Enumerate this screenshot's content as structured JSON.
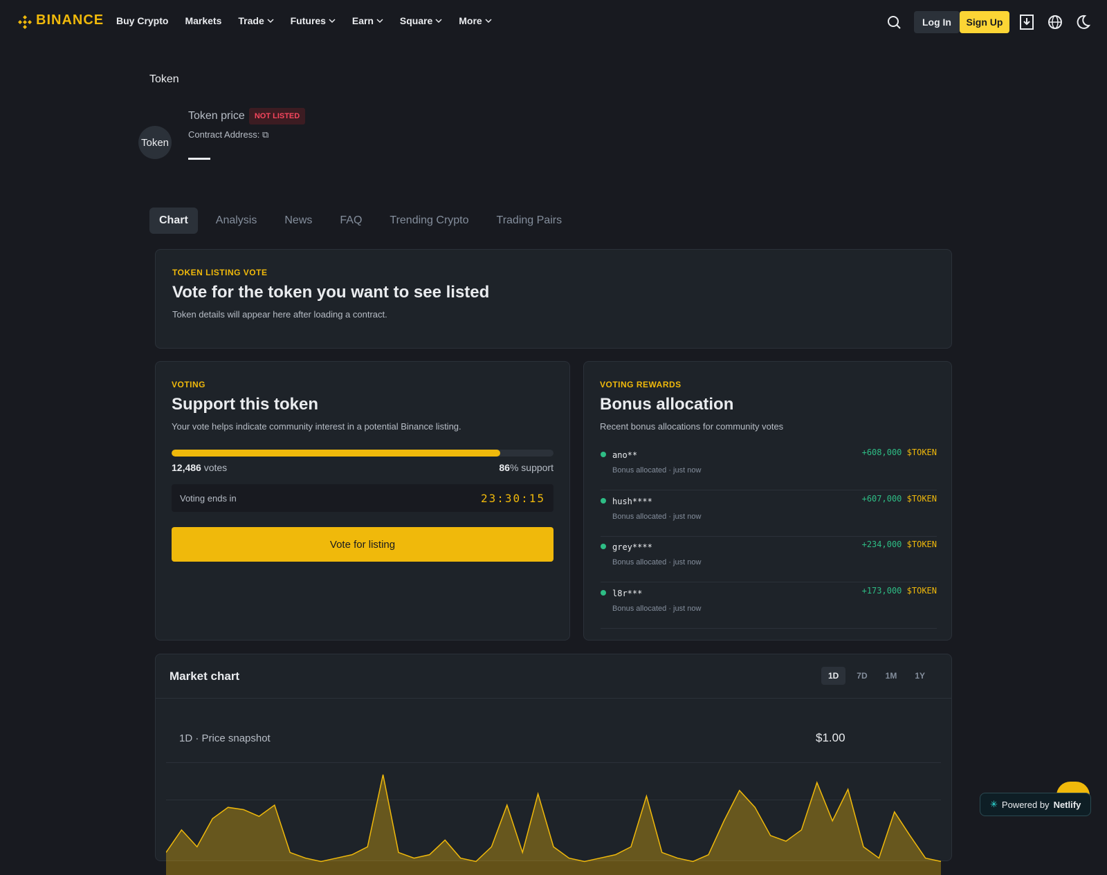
{
  "header": {
    "logo": "BINANCE",
    "nav": [
      "Buy Crypto",
      "Markets",
      "Trade",
      "Futures",
      "Earn",
      "Square",
      "More"
    ],
    "login": "Log In",
    "signup": "Sign Up"
  },
  "breadcrumb": "Token",
  "token": {
    "logo_alt": "Token",
    "title": "Token price",
    "badge": "NOT LISTED",
    "contract": "Contract Address:"
  },
  "tabs": [
    "Chart",
    "Analysis",
    "News",
    "FAQ",
    "Trending Crypto",
    "Trading Pairs"
  ],
  "banner": {
    "eyebrow": "TOKEN LISTING VOTE",
    "title": "Vote for the token you want to see listed",
    "text": "Token details will appear here after loading a contract."
  },
  "voting": {
    "eyebrow": "VOTING",
    "title": "Support this token",
    "text": "Your vote helps indicate community interest in a potential Binance listing.",
    "votes": "12,486",
    "votes_label": "votes",
    "support": 86,
    "support_label": "% support",
    "ends_label": "Voting ends in",
    "countdown": "23:30:15",
    "button": "Vote for listing"
  },
  "rewards": {
    "eyebrow": "VOTING REWARDS",
    "title": "Bonus allocation",
    "text": "Recent bonus allocations for community votes",
    "items": [
      {
        "user": "ano**",
        "note": "Bonus allocated · just now",
        "amount": "+608,000",
        "token": "$TOKEN"
      },
      {
        "user": "hush****",
        "note": "Bonus allocated · just now",
        "amount": "+607,000",
        "token": "$TOKEN"
      },
      {
        "user": "grey****",
        "note": "Bonus allocated · just now",
        "amount": "+234,000",
        "token": "$TOKEN"
      },
      {
        "user": "l8r***",
        "note": "Bonus allocated · just now",
        "amount": "+173,000",
        "token": "$TOKEN"
      }
    ]
  },
  "market": {
    "title": "Market chart",
    "ranges": [
      "1D",
      "7D",
      "1M",
      "1Y"
    ],
    "snapshot": "1D · Price snapshot",
    "price": "$1.00"
  },
  "footer_badge": {
    "prefix": "Powered by",
    "brand": "Netlify"
  },
  "chart_data": {
    "type": "area",
    "color": "#f0b90b",
    "ylim": [
      0,
      100
    ],
    "values": [
      20,
      40,
      25,
      50,
      60,
      58,
      52,
      62,
      20,
      15,
      12,
      15,
      18,
      25,
      89,
      20,
      15,
      18,
      31,
      15,
      12,
      25,
      62,
      20,
      72,
      25,
      15,
      12,
      15,
      18,
      25,
      70,
      20,
      15,
      12,
      18,
      48,
      75,
      60,
      35,
      30,
      40,
      82,
      48,
      76,
      25,
      15,
      56,
      35,
      15,
      12
    ]
  }
}
